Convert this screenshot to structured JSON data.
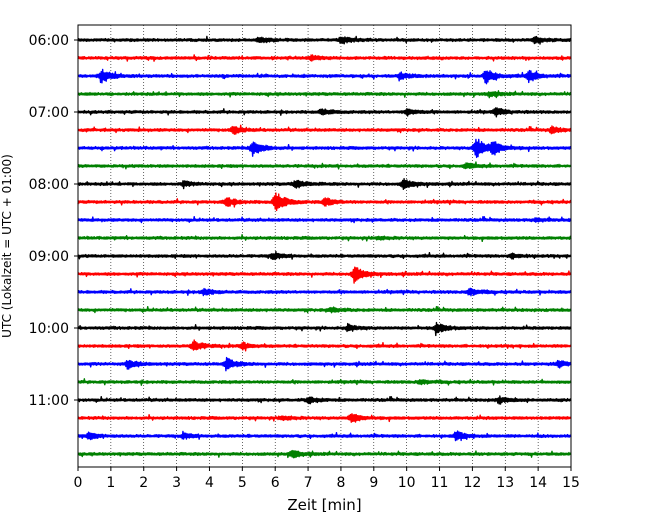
{
  "chart_data": {
    "type": "line",
    "title": "",
    "xlabel": "Zeit  [min]",
    "ylabel": "UTC (Lokalzeit = UTC + 01:00)",
    "xlim": [
      0,
      15
    ],
    "x_ticks": [
      "0",
      "1",
      "2",
      "3",
      "4",
      "5",
      "6",
      "7",
      "8",
      "9",
      "10",
      "11",
      "12",
      "13",
      "14",
      "15"
    ],
    "y_ticks": [
      "06:00",
      "07:00",
      "08:00",
      "09:00",
      "10:00",
      "11:00"
    ],
    "grid": "vertical dotted at each minute",
    "legend": "none",
    "row_colors": [
      "#000000",
      "#ff0000",
      "#0000ff",
      "#008000"
    ],
    "trace_interval_minutes": 15,
    "series": [
      {
        "start": "06:00",
        "events": [
          [
            5.5,
            0.4
          ],
          [
            8,
            0.5
          ],
          [
            13.9,
            0.4
          ]
        ]
      },
      {
        "start": "06:15",
        "events": [
          [
            7.1,
            0.3
          ]
        ]
      },
      {
        "start": "06:30",
        "events": [
          [
            0.7,
            0.9
          ],
          [
            12.4,
            0.9
          ],
          [
            13.7,
            0.7
          ],
          [
            9.8,
            0.4
          ]
        ]
      },
      {
        "start": "06:45",
        "events": [
          [
            12.5,
            0.3
          ]
        ]
      },
      {
        "start": "07:00",
        "events": [
          [
            7.4,
            0.4
          ],
          [
            10,
            0.4
          ],
          [
            12.7,
            0.5
          ]
        ]
      },
      {
        "start": "07:15",
        "events": [
          [
            4.7,
            0.5
          ],
          [
            14.4,
            0.4
          ]
        ]
      },
      {
        "start": "07:30",
        "events": [
          [
            5.3,
            1.0
          ],
          [
            12.1,
            1.4
          ],
          [
            12.6,
            0.8
          ]
        ]
      },
      {
        "start": "07:45",
        "events": [
          [
            11.8,
            0.3
          ]
        ]
      },
      {
        "start": "08:00",
        "events": [
          [
            6.6,
            0.5
          ],
          [
            9.9,
            0.6
          ],
          [
            3.2,
            0.3
          ]
        ]
      },
      {
        "start": "08:15",
        "events": [
          [
            4.5,
            0.6
          ],
          [
            6.0,
            1.4
          ],
          [
            7.5,
            0.5
          ]
        ]
      },
      {
        "start": "08:30",
        "events": [
          [
            13.9,
            0.2
          ]
        ]
      },
      {
        "start": "08:45",
        "events": [
          [
            9.1,
            0.2
          ]
        ]
      },
      {
        "start": "09:00",
        "events": [
          [
            5.9,
            0.4
          ],
          [
            13.2,
            0.3
          ]
        ]
      },
      {
        "start": "09:15",
        "events": [
          [
            8.4,
            1.0
          ]
        ]
      },
      {
        "start": "09:30",
        "events": [
          [
            3.8,
            0.4
          ],
          [
            11.9,
            0.5
          ]
        ]
      },
      {
        "start": "09:45",
        "events": [
          [
            7.7,
            0.3
          ]
        ]
      },
      {
        "start": "10:00",
        "events": [
          [
            8.2,
            0.4
          ],
          [
            10.9,
            0.7
          ]
        ]
      },
      {
        "start": "10:15",
        "events": [
          [
            3.5,
            0.7
          ],
          [
            5.0,
            0.4
          ]
        ]
      },
      {
        "start": "10:30",
        "events": [
          [
            1.5,
            0.5
          ],
          [
            4.5,
            0.7
          ],
          [
            14.6,
            0.4
          ]
        ]
      },
      {
        "start": "10:45",
        "events": [
          [
            10.4,
            0.3
          ]
        ]
      },
      {
        "start": "11:00",
        "events": [
          [
            7.0,
            0.4
          ],
          [
            12.8,
            0.4
          ]
        ]
      },
      {
        "start": "11:15",
        "events": [
          [
            8.3,
            0.6
          ],
          [
            6.2,
            0.3
          ]
        ]
      },
      {
        "start": "11:30",
        "events": [
          [
            0.3,
            0.4
          ],
          [
            3.2,
            0.3
          ],
          [
            11.5,
            0.6
          ]
        ]
      },
      {
        "start": "11:45",
        "events": [
          [
            6.5,
            0.5
          ]
        ]
      }
    ]
  }
}
